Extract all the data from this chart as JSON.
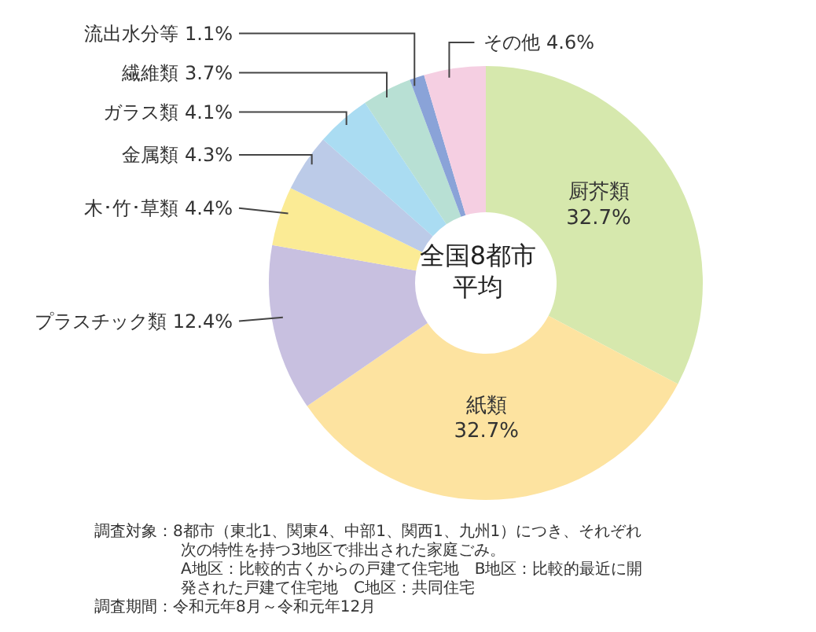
{
  "chart_data": {
    "type": "donut",
    "title": "全国8都市平均",
    "categories": [
      "厨芥類",
      "紙類",
      "プラスチック類",
      "木･竹･草類",
      "金属類",
      "ガラス類",
      "繊維類",
      "流出水分等",
      "その他"
    ],
    "values": [
      32.7,
      32.7,
      12.4,
      4.4,
      4.3,
      4.1,
      3.7,
      1.1,
      4.6
    ],
    "value_labels": [
      "32.7%",
      "32.7%",
      "12.4%",
      "4.4%",
      "4.3%",
      "4.1%",
      "3.7%",
      "1.1%",
      "4.6%"
    ],
    "colors": [
      "#d6e8ad",
      "#fde3a0",
      "#c8c0e0",
      "#fbeb95",
      "#bccbe8",
      "#aadcf2",
      "#b8e0d4",
      "#8aa3d8",
      "#f5cfe2"
    ],
    "legend": false,
    "annotations": [
      "調査対象：8都市（東北1、関東4、中部1、関西1、九州1）につき、それぞれ次の特性を持つ3地区で排出された家庭ごみ。\nA地区：比較的古くからの戸建て住宅地　B地区：比較的最近に開発された戸建て住宅地　C地区：共同住宅",
      "調査期間：令和元年8月～令和元年12月"
    ]
  }
}
